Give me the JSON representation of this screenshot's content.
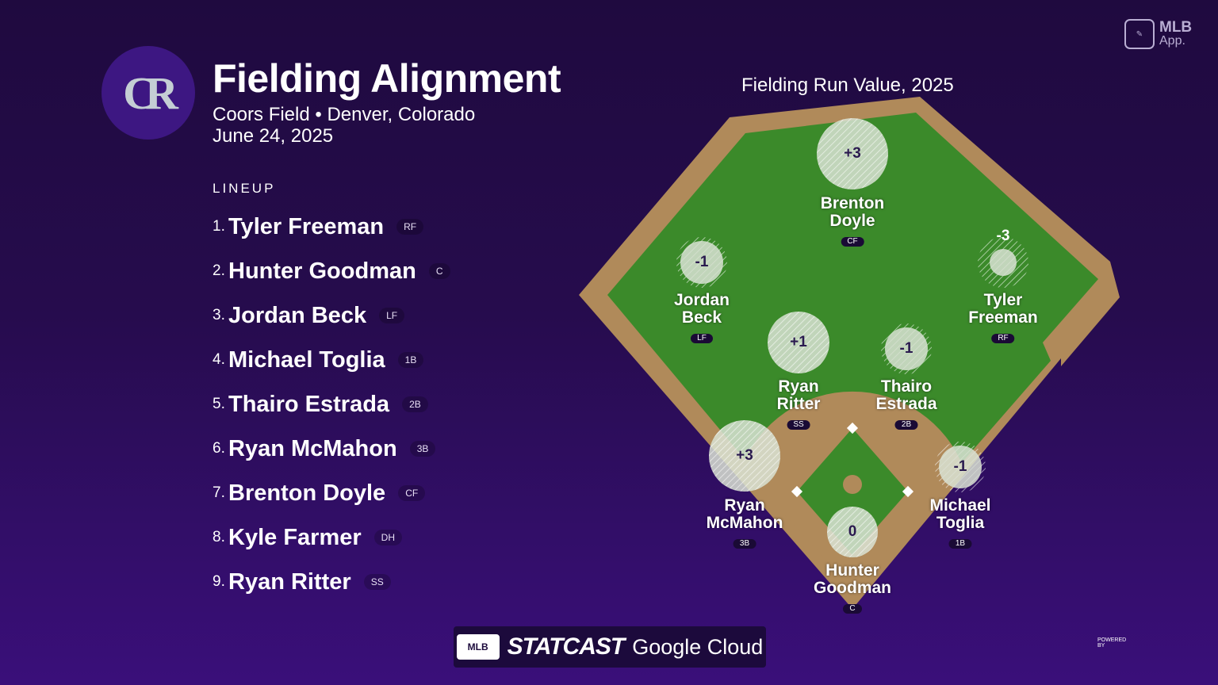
{
  "header": {
    "logo_text": "CR",
    "title": "Fielding Alignment",
    "venue": "Coors Field • Denver, Colorado",
    "date": "June 24, 2025"
  },
  "badge": {
    "line1": "MLB",
    "line2": "App."
  },
  "lineup": {
    "heading": "LINEUP",
    "items": [
      {
        "num": "1.",
        "name": "Tyler Freeman",
        "pos": "RF"
      },
      {
        "num": "2.",
        "name": "Hunter Goodman",
        "pos": "C"
      },
      {
        "num": "3.",
        "name": "Jordan Beck",
        "pos": "LF"
      },
      {
        "num": "4.",
        "name": "Michael Toglia",
        "pos": "1B"
      },
      {
        "num": "5.",
        "name": "Thairo Estrada",
        "pos": "2B"
      },
      {
        "num": "6.",
        "name": "Ryan McMahon",
        "pos": "3B"
      },
      {
        "num": "7.",
        "name": "Brenton Doyle",
        "pos": "CF"
      },
      {
        "num": "8.",
        "name": "Kyle Farmer",
        "pos": "DH"
      },
      {
        "num": "9.",
        "name": "Ryan Ritter",
        "pos": "SS"
      }
    ]
  },
  "field": {
    "title": "Fielding Run Value, 2025",
    "colors": {
      "grass": "#3b8a2a",
      "dirt": "#b08a5a",
      "bubble": "#d9e2d4"
    },
    "players": [
      {
        "first": "Brenton",
        "last": "Doyle",
        "pos": "CF",
        "value": "+3",
        "frv": 3
      },
      {
        "first": "Jordan",
        "last": "Beck",
        "pos": "LF",
        "value": "-1",
        "frv": -1
      },
      {
        "first": "Tyler",
        "last": "Freeman",
        "pos": "RF",
        "value": "-3",
        "frv": -3
      },
      {
        "first": "Ryan",
        "last": "Ritter",
        "pos": "SS",
        "value": "+1",
        "frv": 1
      },
      {
        "first": "Thairo",
        "last": "Estrada",
        "pos": "2B",
        "value": "-1",
        "frv": -1
      },
      {
        "first": "Ryan",
        "last": "McMahon",
        "pos": "3B",
        "value": "+3",
        "frv": 3
      },
      {
        "first": "Michael",
        "last": "Toglia",
        "pos": "1B",
        "value": "-1",
        "frv": -1
      },
      {
        "first": "Hunter",
        "last": "Goodman",
        "pos": "C",
        "value": "0",
        "frv": 0
      }
    ]
  },
  "footer": {
    "mlb": "MLB",
    "statcast": "STATCAST",
    "powered": "POWERED BY",
    "cloud": "Google Cloud"
  }
}
